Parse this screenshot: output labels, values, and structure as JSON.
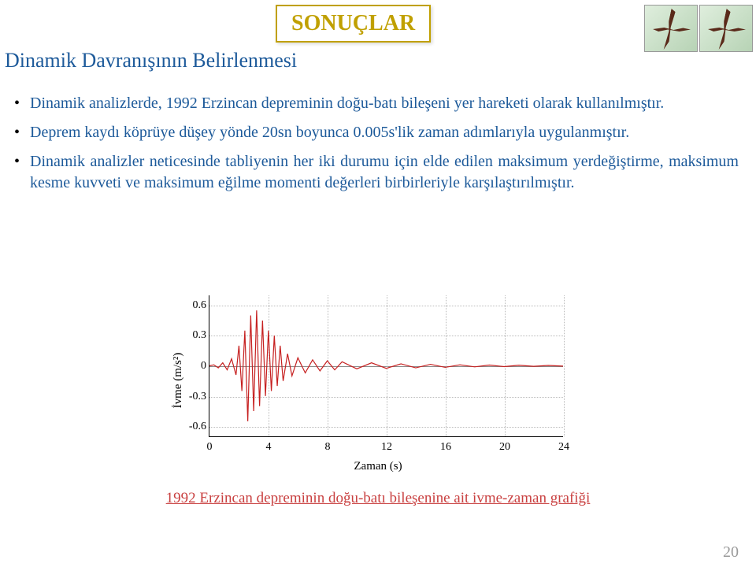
{
  "badge": "SONUÇLAR",
  "subtitle": "Dinamik Davranışının Belirlenmesi",
  "bullets": [
    "Dinamik analizlerde, 1992 Erzincan depreminin doğu-batı bileşeni yer hareketi olarak kullanılmıştır.",
    "Deprem kaydı köprüye düşey yönde 20sn boyunca 0.005s'lik zaman adımlarıyla uygulanmıştır.",
    "Dinamik analizler neticesinde tabliyenin her iki durumu için elde edilen maksimum yerdeğiştirme, maksimum kesme kuvveti ve maksimum eğilme momenti değerleri birbirleriyle karşılaştırılmıştır."
  ],
  "chart": {
    "type": "line",
    "ylabel": "İvme (m/s²)",
    "xlabel": "Zaman (s)",
    "ylim": [
      -0.7,
      0.7
    ],
    "yticks": [
      -0.6,
      -0.3,
      0,
      0.3,
      0.6
    ],
    "xlim": [
      0,
      24
    ],
    "xticks": [
      0,
      4,
      8,
      12,
      16,
      20,
      24
    ],
    "line_color": "#c62020",
    "line_width": 1.2,
    "grid_color": "#bbbbbb",
    "background_color": "#ffffff",
    "series": [
      [
        0,
        0
      ],
      [
        0.3,
        0.01
      ],
      [
        0.6,
        -0.02
      ],
      [
        0.9,
        0.03
      ],
      [
        1.2,
        -0.04
      ],
      [
        1.5,
        0.07
      ],
      [
        1.8,
        -0.09
      ],
      [
        2.0,
        0.2
      ],
      [
        2.2,
        -0.25
      ],
      [
        2.4,
        0.35
      ],
      [
        2.6,
        -0.55
      ],
      [
        2.8,
        0.5
      ],
      [
        3.0,
        -0.45
      ],
      [
        3.2,
        0.55
      ],
      [
        3.4,
        -0.4
      ],
      [
        3.6,
        0.45
      ],
      [
        3.8,
        -0.3
      ],
      [
        4.0,
        0.35
      ],
      [
        4.2,
        -0.25
      ],
      [
        4.4,
        0.3
      ],
      [
        4.6,
        -0.2
      ],
      [
        4.8,
        0.2
      ],
      [
        5.0,
        -0.15
      ],
      [
        5.3,
        0.12
      ],
      [
        5.6,
        -0.1
      ],
      [
        6.0,
        0.08
      ],
      [
        6.5,
        -0.07
      ],
      [
        7.0,
        0.06
      ],
      [
        7.5,
        -0.05
      ],
      [
        8.0,
        0.05
      ],
      [
        8.5,
        -0.04
      ],
      [
        9.0,
        0.04
      ],
      [
        10,
        -0.03
      ],
      [
        11,
        0.03
      ],
      [
        12,
        -0.025
      ],
      [
        13,
        0.02
      ],
      [
        14,
        -0.02
      ],
      [
        15,
        0.015
      ],
      [
        16,
        -0.015
      ],
      [
        17,
        0.01
      ],
      [
        18,
        -0.01
      ],
      [
        19,
        0.008
      ],
      [
        20,
        -0.008
      ],
      [
        21,
        0.006
      ],
      [
        22,
        -0.005
      ],
      [
        23,
        0.004
      ],
      [
        24,
        -0.003
      ]
    ]
  },
  "caption": "1992 Erzincan depreminin doğu-batı bileşenine ait ivme-zaman grafiği",
  "page_number": "20",
  "colors": {
    "title_text": "#c0a000",
    "body_text": "#1d5a9a",
    "caption_text": "#c94040",
    "page_num": "#9a9a9a"
  }
}
